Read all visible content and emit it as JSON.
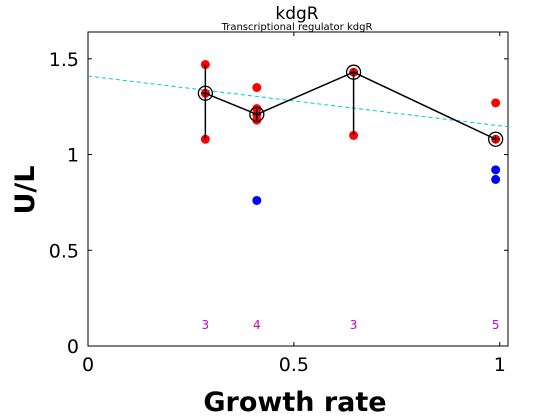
{
  "chart_data": {
    "type": "scatter",
    "title": "kdgR",
    "subtitle": "Transcriptional regulator kdgR",
    "xlabel": "Growth rate",
    "ylabel": "U/L",
    "xlim": [
      0,
      1.02
    ],
    "ylim": [
      0,
      1.64
    ],
    "xticks": [
      {
        "value": 0,
        "label": "0"
      },
      {
        "value": 0.5,
        "label": "0.5"
      },
      {
        "value": 1,
        "label": "1"
      }
    ],
    "yticks": [
      {
        "value": 0,
        "label": "0"
      },
      {
        "value": 0.5,
        "label": "0.5"
      },
      {
        "value": 1,
        "label": "1"
      },
      {
        "value": 1.5,
        "label": "1.5"
      }
    ],
    "grid": false,
    "series": [
      {
        "kind": "red-points",
        "color": "#ff0000",
        "points": [
          {
            "x": 0.285,
            "y": 1.47
          },
          {
            "x": 0.285,
            "y": 1.32
          },
          {
            "x": 0.285,
            "y": 1.08
          },
          {
            "x": 0.41,
            "y": 1.35
          },
          {
            "x": 0.41,
            "y": 1.24
          },
          {
            "x": 0.41,
            "y": 1.21
          },
          {
            "x": 0.41,
            "y": 1.18
          },
          {
            "x": 0.645,
            "y": 1.43
          },
          {
            "x": 0.645,
            "y": 1.1
          },
          {
            "x": 0.99,
            "y": 1.27
          },
          {
            "x": 0.99,
            "y": 1.08
          }
        ]
      },
      {
        "kind": "blue-points",
        "color": "#0000ff",
        "points": [
          {
            "x": 0.41,
            "y": 0.76
          },
          {
            "x": 0.99,
            "y": 0.92
          },
          {
            "x": 0.99,
            "y": 0.87
          }
        ]
      },
      {
        "kind": "mean-line",
        "color": "#000000",
        "points": [
          {
            "x": 0.285,
            "y": 1.32,
            "ymin": 1.08,
            "ymax": 1.47
          },
          {
            "x": 0.41,
            "y": 1.21,
            "ymin": 1.18,
            "ymax": 1.24
          },
          {
            "x": 0.645,
            "y": 1.43,
            "ymin": 1.1,
            "ymax": 1.43
          },
          {
            "x": 0.99,
            "y": 1.08,
            "ymin": 1.08,
            "ymax": 1.08
          }
        ]
      },
      {
        "kind": "fit-line",
        "color": "#00cccc",
        "x": [
          0,
          1.02
        ],
        "y": [
          1.41,
          1.145
        ]
      }
    ],
    "annotations": {
      "color": "#cc00cc",
      "y": 0.11,
      "items": [
        {
          "x": 0.285,
          "text": "3"
        },
        {
          "x": 0.41,
          "text": "4"
        },
        {
          "x": 0.645,
          "text": "3"
        },
        {
          "x": 0.99,
          "text": "5"
        }
      ]
    }
  }
}
